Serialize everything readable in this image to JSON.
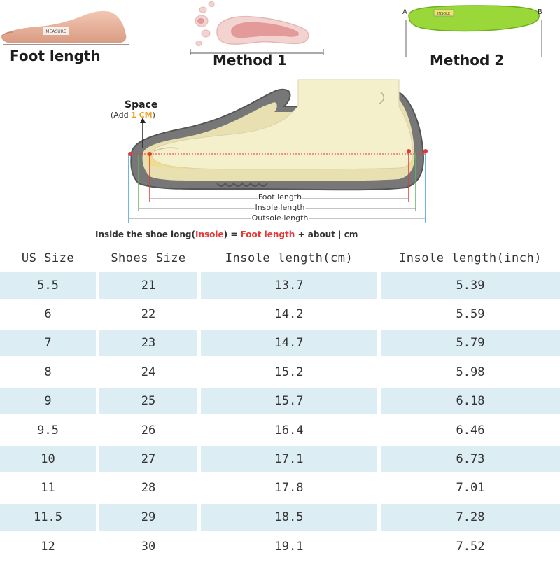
{
  "top_panels": {
    "foot_length": {
      "caption": "Foot length",
      "tag": "MEASURE"
    },
    "method1": {
      "caption": "Method 1"
    },
    "method2": {
      "caption": "Method 2",
      "end_a": "A",
      "end_b": "B",
      "insole_tag": "INSOLE"
    }
  },
  "diagram": {
    "space_label": "Space",
    "add_prefix": "(Add ",
    "add_value": "1 CM",
    "add_suffix": ")",
    "foot_length_label": "Foot length",
    "insole_length_label": "Insole length",
    "outsole_length_label": "Outsole length",
    "formula": {
      "part1": "Inside the shoe long(",
      "insole": "Insole",
      "part2": ") = ",
      "foot_length": "Foot length",
      "part3": " + about  | cm"
    },
    "colors": {
      "accent_red": "#e53935",
      "accent_orange": "#f0a020",
      "sole_gray": "#6b6b6b",
      "foot_cream": "#f5f0cc",
      "insole_yellow": "#f0dc90"
    }
  },
  "size_table": {
    "headers": [
      "US Size",
      "Shoes Size",
      "Insole length(cm)",
      "Insole length(inch)"
    ],
    "rows": [
      [
        "5.5",
        "21",
        "13.7",
        "5.39"
      ],
      [
        "6",
        "22",
        "14.2",
        "5.59"
      ],
      [
        "7",
        "23",
        "14.7",
        "5.79"
      ],
      [
        "8",
        "24",
        "15.2",
        "5.98"
      ],
      [
        "9",
        "25",
        "15.7",
        "6.18"
      ],
      [
        "9.5",
        "26",
        "16.4",
        "6.46"
      ],
      [
        "10",
        "27",
        "17.1",
        "6.73"
      ],
      [
        "11",
        "28",
        "17.8",
        "7.01"
      ],
      [
        "11.5",
        "29",
        "18.5",
        "7.28"
      ],
      [
        "12",
        "30",
        "19.1",
        "7.52"
      ]
    ],
    "shade_color": "#dcedf3"
  }
}
